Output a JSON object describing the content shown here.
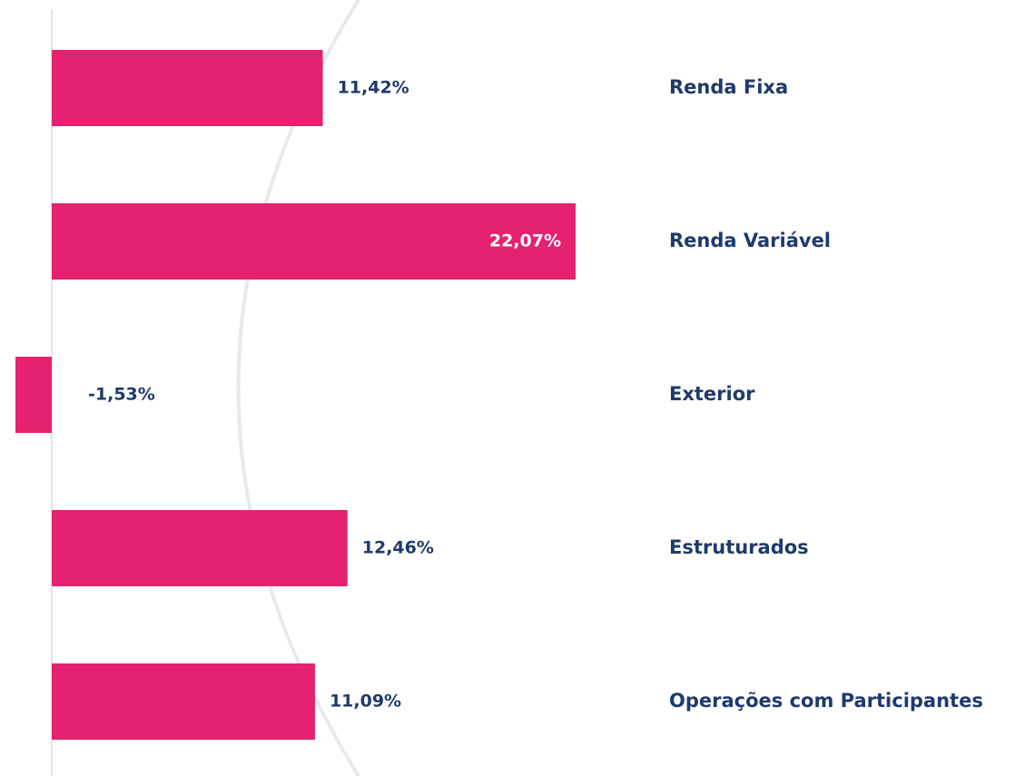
{
  "chart_data": {
    "type": "hbar",
    "categories": [
      "Renda Fixa",
      "Renda Variável",
      "Exterior",
      "Estruturados",
      "Operações com Participantes"
    ],
    "values": [
      11.42,
      22.07,
      -1.53,
      12.46,
      11.09
    ],
    "value_labels": [
      "11,42%",
      "22,07%",
      "-1,53%",
      "12,46%",
      "11,09%"
    ],
    "color": "#e5226f"
  }
}
